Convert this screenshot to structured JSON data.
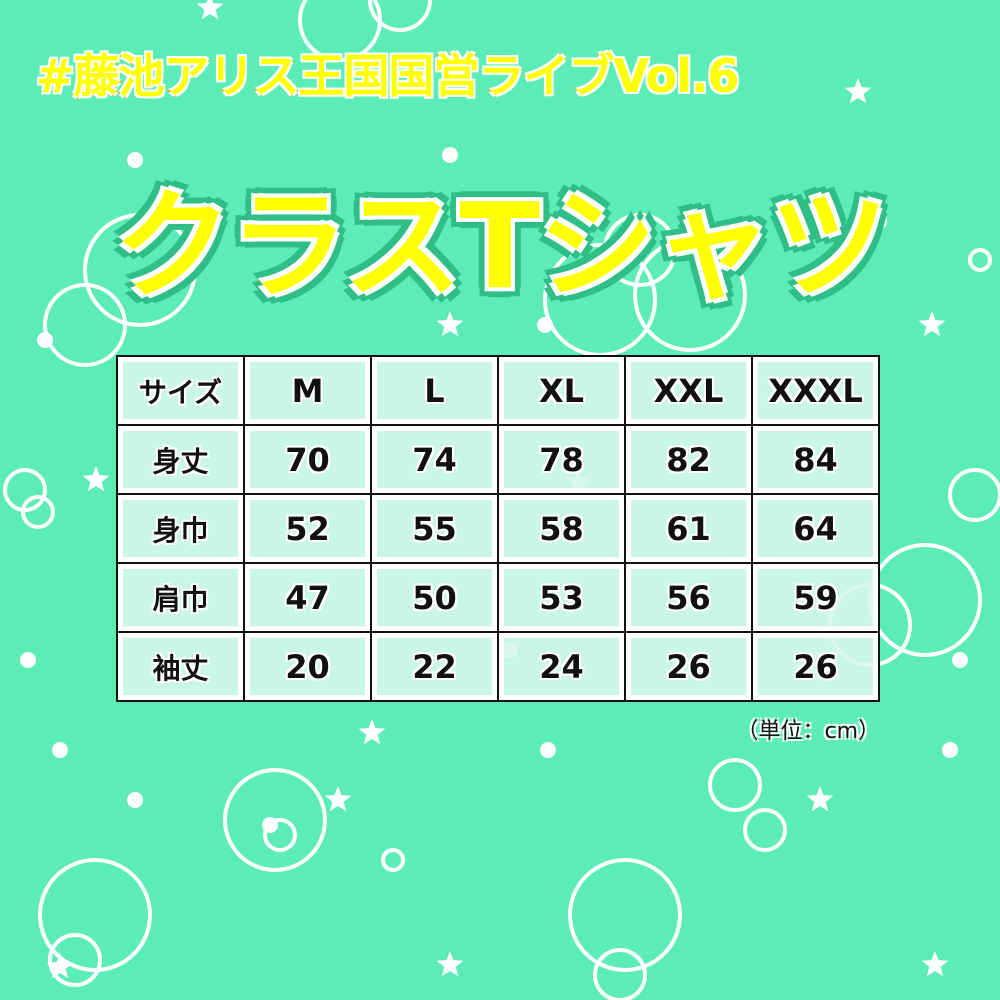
{
  "header": {
    "subtitle": "#藤池アリス王国国営ライブVol.6",
    "title": "クラスTシャツ"
  },
  "colors": {
    "background": "#5cedb7",
    "title_fill": "#ffff00",
    "title_stroke": "#ffa500",
    "title_outline": "#2fbf86"
  },
  "table": {
    "header": [
      "サイズ",
      "M",
      "L",
      "XL",
      "XXL",
      "XXXL"
    ],
    "rows": [
      [
        "身丈",
        "70",
        "74",
        "78",
        "82",
        "84"
      ],
      [
        "身巾",
        "52",
        "55",
        "58",
        "61",
        "64"
      ],
      [
        "肩巾",
        "47",
        "50",
        "53",
        "56",
        "59"
      ],
      [
        "袖丈",
        "20",
        "22",
        "24",
        "26",
        "26"
      ]
    ]
  },
  "unit_note": "（単位：cm）"
}
